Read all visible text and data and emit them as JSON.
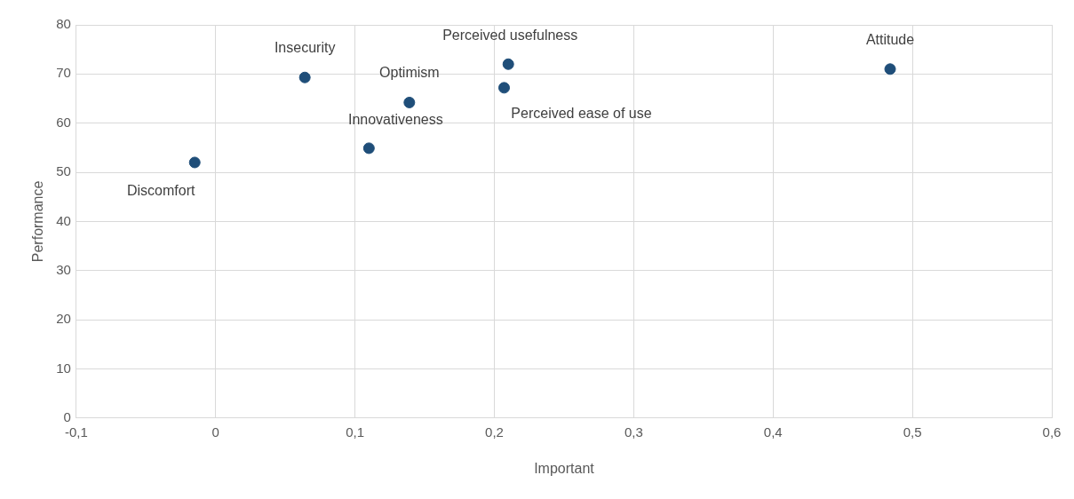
{
  "chart_data": {
    "type": "scatter",
    "xlabel": "Important",
    "ylabel": "Performance",
    "x": [
      -0.015,
      0.064,
      0.11,
      0.139,
      0.207,
      0.21,
      0.484
    ],
    "values": [
      52,
      69.3,
      54.9,
      64.2,
      67.2,
      72,
      71
    ],
    "color": "#1f4e79",
    "marker": "circle",
    "xlim": [
      -0.1,
      0.6
    ],
    "xticks": [
      {
        "value": -0.1,
        "label": "-0,1"
      },
      {
        "value": 0,
        "label": "0"
      },
      {
        "value": 0.1,
        "label": "0,1"
      },
      {
        "value": 0.2,
        "label": "0,2"
      },
      {
        "value": 0.3,
        "label": "0,3"
      },
      {
        "value": 0.4,
        "label": "0,4"
      },
      {
        "value": 0.5,
        "label": "0,5"
      },
      {
        "value": 0.6,
        "label": "0,6"
      }
    ],
    "ylim": [
      0,
      80
    ],
    "yticks": [
      0,
      10,
      20,
      30,
      40,
      50,
      60,
      70,
      80
    ],
    "grid": true,
    "legend": false,
    "annotations": [
      {
        "text": "Discomfort",
        "x": -0.015,
        "y": 52
      },
      {
        "text": "Insecurity",
        "x": 0.064,
        "y": 69.3
      },
      {
        "text": "Innovativeness",
        "x": 0.11,
        "y": 54.9
      },
      {
        "text": "Optimism",
        "x": 0.139,
        "y": 64.2
      },
      {
        "text": "Perceived ease of use",
        "x": 0.207,
        "y": 67.2
      },
      {
        "text": "Perceived usefulness",
        "x": 0.21,
        "y": 72
      },
      {
        "text": "Attitude",
        "x": 0.484,
        "y": 71
      }
    ]
  }
}
